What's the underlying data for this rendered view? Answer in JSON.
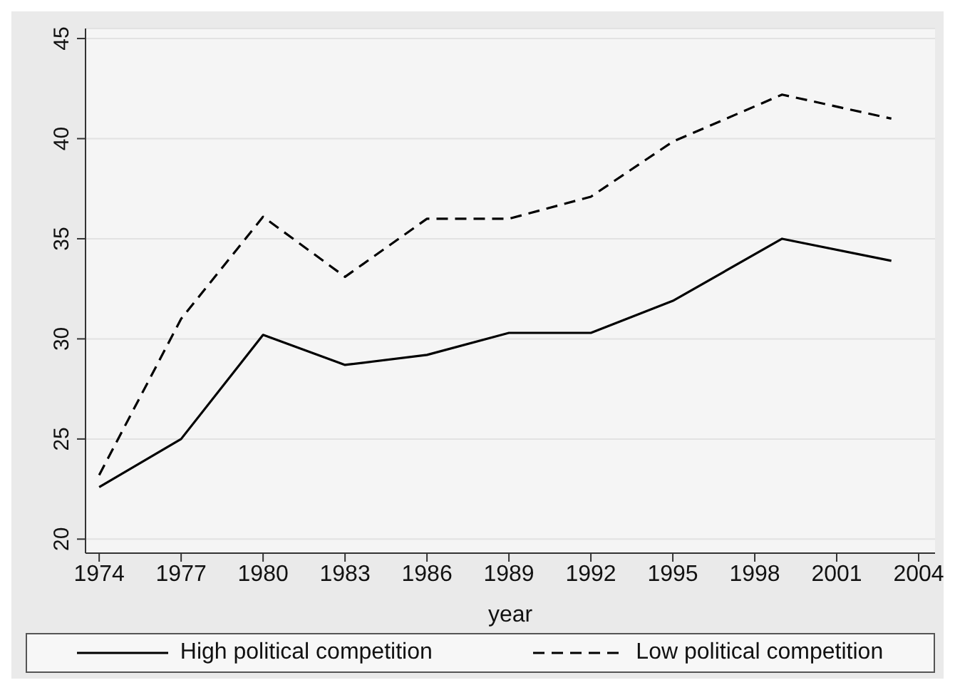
{
  "chart_data": {
    "type": "line",
    "xlabel": "year",
    "x": [
      1974,
      1977,
      1980,
      1983,
      1986,
      1989,
      1992,
      1995,
      1999,
      2003
    ],
    "series": [
      {
        "name": "High political competition",
        "color": "#000000",
        "line_style": "solid",
        "values": [
          22.6,
          25.0,
          30.2,
          28.7,
          29.2,
          30.3,
          30.3,
          31.9,
          35.0,
          33.9
        ]
      },
      {
        "name": "Low political competition",
        "color": "#000000",
        "line_style": "dashed",
        "values": [
          23.2,
          31.0,
          36.1,
          33.1,
          36.0,
          36.0,
          37.1,
          39.85,
          42.2,
          41.0
        ]
      }
    ],
    "xlim": [
      1973.5,
      2004.6
    ],
    "xticks": [
      1974,
      1977,
      1980,
      1983,
      1986,
      1989,
      1992,
      1995,
      1998,
      2001,
      2004
    ],
    "ylim": [
      19.3,
      45.5
    ],
    "yticks": [
      20,
      25,
      30,
      35,
      40,
      45
    ],
    "grid": "y",
    "legend": "bottom",
    "marker": "none"
  }
}
